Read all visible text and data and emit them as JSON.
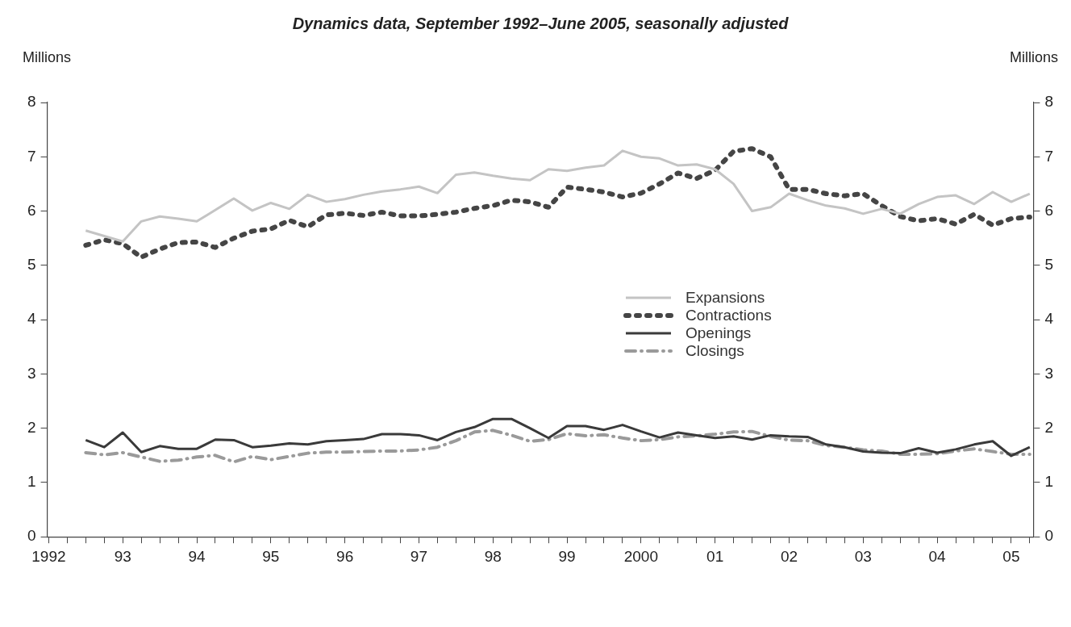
{
  "chart_data": {
    "type": "line",
    "title": "Dynamics data, September 1992–June 2005, seasonally adjusted",
    "ylabel": "Millions",
    "y2label": "Millions",
    "x": [
      1992.5,
      1992.75,
      1993,
      1993.25,
      1993.5,
      1993.75,
      1994,
      1994.25,
      1994.5,
      1994.75,
      1995,
      1995.25,
      1995.5,
      1995.75,
      1996,
      1996.25,
      1996.5,
      1996.75,
      1997,
      1997.25,
      1997.5,
      1997.75,
      1998,
      1998.25,
      1998.5,
      1998.75,
      1999,
      1999.25,
      1999.5,
      1999.75,
      2000,
      2000.25,
      2000.5,
      2000.75,
      2001,
      2001.25,
      2001.5,
      2001.75,
      2002,
      2002.25,
      2002.5,
      2002.75,
      2003,
      2003.25,
      2003.5,
      2003.75,
      2004,
      2004.25,
      2004.5,
      2004.75,
      2005,
      2005.25
    ],
    "series": [
      {
        "name": "Expansions",
        "color": "#c4c4c4",
        "line_style": "solid",
        "values": [
          5.64,
          5.54,
          5.44,
          5.81,
          5.9,
          5.86,
          5.81,
          6.02,
          6.23,
          6.01,
          6.15,
          6.04,
          6.3,
          6.17,
          6.22,
          6.3,
          6.36,
          6.4,
          6.45,
          6.33,
          6.67,
          6.71,
          6.65,
          6.6,
          6.57,
          6.77,
          6.74,
          6.8,
          6.84,
          7.11,
          7.0,
          6.97,
          6.84,
          6.86,
          6.77,
          6.5,
          6.0,
          6.07,
          6.32,
          6.2,
          6.1,
          6.05,
          5.95,
          6.04,
          5.95,
          6.13,
          6.26,
          6.29,
          6.13,
          6.35,
          6.17,
          6.32
        ]
      },
      {
        "name": "Contractions",
        "color": "#454545",
        "line_style": "dotted",
        "values": [
          5.37,
          5.47,
          5.4,
          5.15,
          5.3,
          5.42,
          5.43,
          5.33,
          5.5,
          5.63,
          5.67,
          5.83,
          5.71,
          5.93,
          5.96,
          5.92,
          5.98,
          5.91,
          5.91,
          5.94,
          5.98,
          6.05,
          6.1,
          6.2,
          6.17,
          6.07,
          6.44,
          6.4,
          6.35,
          6.26,
          6.33,
          6.5,
          6.7,
          6.6,
          6.75,
          7.1,
          7.15,
          7.0,
          6.4,
          6.4,
          6.32,
          6.28,
          6.32,
          6.1,
          5.9,
          5.82,
          5.86,
          5.76,
          5.94,
          5.74,
          5.86,
          5.89
        ]
      },
      {
        "name": "Openings",
        "color": "#3a3a3a",
        "line_style": "solid",
        "values": [
          1.78,
          1.65,
          1.92,
          1.56,
          1.67,
          1.62,
          1.62,
          1.79,
          1.78,
          1.65,
          1.68,
          1.72,
          1.7,
          1.76,
          1.78,
          1.8,
          1.89,
          1.89,
          1.87,
          1.78,
          1.93,
          2.02,
          2.17,
          2.17,
          2.0,
          1.82,
          2.04,
          2.04,
          1.97,
          2.06,
          1.94,
          1.83,
          1.92,
          1.87,
          1.82,
          1.85,
          1.79,
          1.87,
          1.85,
          1.84,
          1.7,
          1.65,
          1.57,
          1.55,
          1.54,
          1.63,
          1.55,
          1.61,
          1.7,
          1.76,
          1.49,
          1.65
        ]
      },
      {
        "name": "Closings",
        "color": "#9a9a9a",
        "line_style": "dashed",
        "values": [
          1.55,
          1.51,
          1.55,
          1.47,
          1.39,
          1.41,
          1.47,
          1.5,
          1.38,
          1.48,
          1.42,
          1.48,
          1.54,
          1.56,
          1.56,
          1.57,
          1.58,
          1.58,
          1.6,
          1.65,
          1.77,
          1.93,
          1.96,
          1.87,
          1.76,
          1.79,
          1.9,
          1.86,
          1.88,
          1.82,
          1.77,
          1.79,
          1.84,
          1.86,
          1.89,
          1.93,
          1.94,
          1.85,
          1.78,
          1.77,
          1.68,
          1.65,
          1.6,
          1.58,
          1.52,
          1.52,
          1.53,
          1.58,
          1.62,
          1.57,
          1.52,
          1.52
        ]
      }
    ],
    "xlim": [
      1991.98,
      2005.3
    ],
    "xticks": [
      {
        "value": 1992,
        "label": "1992"
      },
      {
        "value": 1992.25,
        "label": null
      },
      {
        "value": 1992.5,
        "label": null
      },
      {
        "value": 1992.75,
        "label": null
      },
      {
        "value": 1993,
        "label": "93"
      },
      {
        "value": 1993.25,
        "label": null
      },
      {
        "value": 1993.5,
        "label": null
      },
      {
        "value": 1993.75,
        "label": null
      },
      {
        "value": 1994,
        "label": "94"
      },
      {
        "value": 1994.25,
        "label": null
      },
      {
        "value": 1994.5,
        "label": null
      },
      {
        "value": 1994.75,
        "label": null
      },
      {
        "value": 1995,
        "label": "95"
      },
      {
        "value": 1995.25,
        "label": null
      },
      {
        "value": 1995.5,
        "label": null
      },
      {
        "value": 1995.75,
        "label": null
      },
      {
        "value": 1996,
        "label": "96"
      },
      {
        "value": 1996.25,
        "label": null
      },
      {
        "value": 1996.5,
        "label": null
      },
      {
        "value": 1996.75,
        "label": null
      },
      {
        "value": 1997,
        "label": "97"
      },
      {
        "value": 1997.25,
        "label": null
      },
      {
        "value": 1997.5,
        "label": null
      },
      {
        "value": 1997.75,
        "label": null
      },
      {
        "value": 1998,
        "label": "98"
      },
      {
        "value": 1998.25,
        "label": null
      },
      {
        "value": 1998.5,
        "label": null
      },
      {
        "value": 1998.75,
        "label": null
      },
      {
        "value": 1999,
        "label": "99"
      },
      {
        "value": 1999.25,
        "label": null
      },
      {
        "value": 1999.5,
        "label": null
      },
      {
        "value": 1999.75,
        "label": null
      },
      {
        "value": 2000,
        "label": "2000"
      },
      {
        "value": 2000.25,
        "label": null
      },
      {
        "value": 2000.5,
        "label": null
      },
      {
        "value": 2000.75,
        "label": null
      },
      {
        "value": 2001,
        "label": "01"
      },
      {
        "value": 2001.25,
        "label": null
      },
      {
        "value": 2001.5,
        "label": null
      },
      {
        "value": 2001.75,
        "label": null
      },
      {
        "value": 2002,
        "label": "02"
      },
      {
        "value": 2002.25,
        "label": null
      },
      {
        "value": 2002.5,
        "label": null
      },
      {
        "value": 2002.75,
        "label": null
      },
      {
        "value": 2003,
        "label": "03"
      },
      {
        "value": 2003.25,
        "label": null
      },
      {
        "value": 2003.5,
        "label": null
      },
      {
        "value": 2003.75,
        "label": null
      },
      {
        "value": 2004,
        "label": "04"
      },
      {
        "value": 2004.25,
        "label": null
      },
      {
        "value": 2004.5,
        "label": null
      },
      {
        "value": 2004.75,
        "label": null
      },
      {
        "value": 2005,
        "label": "05"
      },
      {
        "value": 2005.25,
        "label": null
      }
    ],
    "ylim": [
      0,
      8
    ],
    "yticks": [
      0,
      1,
      2,
      3,
      4,
      5,
      6,
      7,
      8
    ],
    "y2lim": [
      0,
      8
    ],
    "y2ticks": [
      0,
      1,
      2,
      3,
      4,
      5,
      6,
      7,
      8
    ],
    "grid": false,
    "legend": "center right"
  }
}
